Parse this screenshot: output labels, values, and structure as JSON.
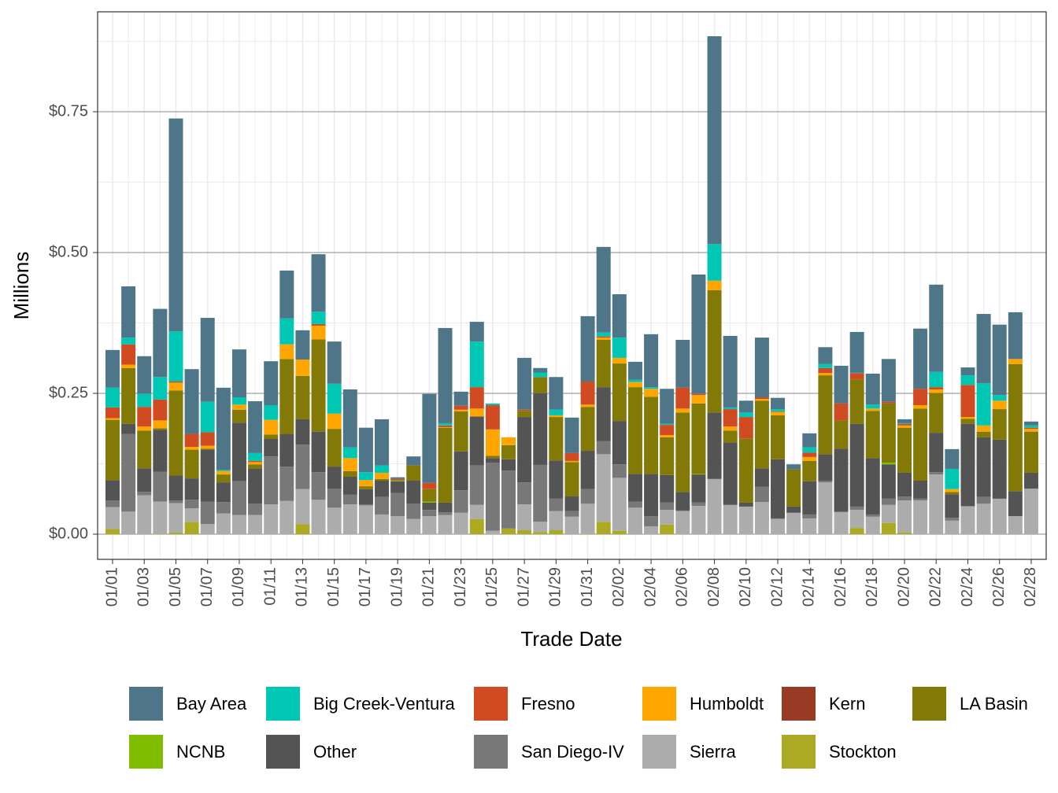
{
  "chart_data": {
    "type": "bar",
    "stacked": true,
    "xlabel": "Trade Date",
    "ylabel": "Millions",
    "ylim": [
      0,
      0.92
    ],
    "y_ticks": [
      0,
      0.25,
      0.5,
      0.75
    ],
    "y_tick_labels": [
      "$0.00",
      "$0.25",
      "$0.50",
      "$0.75"
    ],
    "grid": true,
    "legend_position": "bottom",
    "categories": [
      "01/01",
      "01/02",
      "01/03",
      "01/04",
      "01/05",
      "01/06",
      "01/07",
      "01/08",
      "01/09",
      "01/10",
      "01/11",
      "01/12",
      "01/13",
      "01/14",
      "01/15",
      "01/16",
      "01/17",
      "01/18",
      "01/19",
      "01/20",
      "01/21",
      "01/22",
      "01/23",
      "01/24",
      "01/25",
      "01/26",
      "01/27",
      "01/28",
      "01/29",
      "01/30",
      "01/31",
      "02/01",
      "02/02",
      "02/03",
      "02/04",
      "02/05",
      "02/06",
      "02/07",
      "02/08",
      "02/09",
      "02/10",
      "02/11",
      "02/12",
      "02/13",
      "02/14",
      "02/15",
      "02/16",
      "02/17",
      "02/18",
      "02/19",
      "02/20",
      "02/21",
      "02/22",
      "02/23",
      "02/24",
      "02/25",
      "02/26",
      "02/27",
      "02/28"
    ],
    "x_tick_labels": [
      "01/01",
      "01/03",
      "01/05",
      "01/07",
      "01/09",
      "01/11",
      "01/13",
      "01/15",
      "01/17",
      "01/19",
      "01/21",
      "01/23",
      "01/25",
      "01/27",
      "01/29",
      "01/31",
      "02/02",
      "02/04",
      "02/06",
      "02/08",
      "02/10",
      "02/12",
      "02/14",
      "02/16",
      "02/18",
      "02/20",
      "02/22",
      "02/24",
      "02/26",
      "02/28"
    ],
    "series": [
      {
        "name": "Bay Area",
        "color": "#4f7589",
        "values": [
          0.067,
          0.091,
          0.067,
          0.121,
          0.378,
          0.115,
          0.149,
          0.146,
          0.085,
          0.092,
          0.078,
          0.085,
          0.052,
          0.102,
          0.075,
          0.103,
          0.079,
          0.082,
          0.003,
          0.016,
          0.158,
          0.169,
          0.025,
          0.035,
          0,
          0,
          0.092,
          0.008,
          0.058,
          0.063,
          0.116,
          0.152,
          0.077,
          0.032,
          0.094,
          0.062,
          0.085,
          0.212,
          0.369,
          0.127,
          0.021,
          0.106,
          0.02,
          0.009,
          0.025,
          0.03,
          0.067,
          0.072,
          0.055,
          0.076,
          0.007,
          0.107,
          0.155,
          0.035,
          0.014,
          0.123,
          0.125,
          0.083,
          0.007
        ]
      },
      {
        "name": "Big Creek-Ventura",
        "color": "#00c7b3",
        "values": [
          0.035,
          0.012,
          0.023,
          0.04,
          0.089,
          0,
          0.054,
          0.002,
          0.013,
          0.014,
          0.026,
          0.046,
          0,
          0.022,
          0.053,
          0.019,
          0.014,
          0.013,
          0,
          0,
          0,
          0.004,
          0,
          0.081,
          0.003,
          0,
          0,
          0.008,
          0.01,
          0,
          0,
          0.007,
          0.036,
          0.004,
          0.003,
          0.002,
          0,
          0,
          0.065,
          0.003,
          0.008,
          0,
          0.004,
          0,
          0.009,
          0.007,
          0,
          0.001,
          0.007,
          0,
          0.001,
          0,
          0.027,
          0.036,
          0.017,
          0.075,
          0.01,
          0,
          0.004
        ]
      },
      {
        "name": "Fresno",
        "color": "#d04a22",
        "values": [
          0.019,
          0.036,
          0.035,
          0.037,
          0.002,
          0.023,
          0.024,
          0,
          0,
          0.002,
          0,
          0,
          0,
          0.003,
          0,
          0,
          0,
          0,
          0.002,
          0,
          0.011,
          0.003,
          0.007,
          0.038,
          0.043,
          0,
          0.002,
          0,
          0,
          0.014,
          0.041,
          0.002,
          0,
          0,
          0,
          0.018,
          0.037,
          0.002,
          0,
          0.031,
          0.038,
          0.003,
          0.001,
          0,
          0.008,
          0.009,
          0.03,
          0.011,
          0,
          0.003,
          0.003,
          0.029,
          0.004,
          0,
          0.057,
          0,
          0,
          0,
          0.002
        ]
      },
      {
        "name": "Humboldt",
        "color": "#ffa500",
        "values": [
          0.003,
          0.006,
          0.007,
          0.014,
          0.014,
          0.005,
          0.005,
          0.006,
          0.009,
          0.004,
          0.026,
          0.026,
          0.029,
          0.024,
          0.027,
          0.023,
          0.011,
          0.011,
          0,
          0,
          0,
          0.001,
          0.003,
          0.014,
          0.047,
          0.014,
          0,
          0,
          0.003,
          0.002,
          0.004,
          0.004,
          0.01,
          0.009,
          0.014,
          0.004,
          0.007,
          0.015,
          0.017,
          0.007,
          0,
          0.003,
          0.006,
          0,
          0.007,
          0.004,
          0,
          0,
          0.004,
          0,
          0.004,
          0.006,
          0.006,
          0.005,
          0.003,
          0.011,
          0.015,
          0.009,
          0.005
        ]
      },
      {
        "name": "Kern",
        "color": "#983a24",
        "values": [
          0,
          0,
          0,
          0,
          0,
          0,
          0,
          0,
          0,
          0,
          0,
          0,
          0,
          0,
          0,
          0,
          0,
          0,
          0,
          0,
          0,
          0,
          0,
          0,
          0,
          0,
          0,
          0,
          0,
          0,
          0,
          0,
          0,
          0,
          0,
          0,
          0,
          0,
          0,
          0,
          0,
          0,
          0,
          0,
          0,
          0,
          0,
          0,
          0,
          0,
          0,
          0,
          0,
          0,
          0,
          0,
          0,
          0,
          0
        ]
      },
      {
        "name": "LA Basin",
        "color": "#827906",
        "values": [
          0.107,
          0.099,
          0.067,
          0.003,
          0.151,
          0.051,
          0.002,
          0.014,
          0.023,
          0.007,
          0.008,
          0.133,
          0.077,
          0.164,
          0.067,
          0.01,
          0.005,
          0.003,
          0.001,
          0.027,
          0.022,
          0.133,
          0.071,
          0,
          0.004,
          0.025,
          0.011,
          0.028,
          0.077,
          0.061,
          0.078,
          0.084,
          0.102,
          0.154,
          0.137,
          0.067,
          0.141,
          0.125,
          0.217,
          0.021,
          0.114,
          0.12,
          0.078,
          0.066,
          0.036,
          0.14,
          0.05,
          0.079,
          0.084,
          0.105,
          0.08,
          0.128,
          0.071,
          0.004,
          0.009,
          0.01,
          0.054,
          0.226,
          0.073
        ]
      },
      {
        "name": "NCNB",
        "color": "#80bc00",
        "values": [
          0,
          0,
          0,
          0,
          0,
          0,
          0,
          0,
          0,
          0,
          0,
          0,
          0,
          0,
          0,
          0,
          0,
          0,
          0.001,
          0,
          0.002,
          0,
          0,
          0,
          0,
          0,
          0,
          0,
          0,
          0,
          0,
          0,
          0,
          0,
          0,
          0,
          0,
          0.001,
          0,
          0,
          0,
          0,
          0,
          0,
          0,
          0,
          0,
          0,
          0,
          0.003,
          0,
          0,
          0,
          0,
          0,
          0,
          0,
          0,
          0
        ]
      },
      {
        "name": "Other",
        "color": "#545454",
        "values": [
          0.036,
          0.018,
          0.042,
          0.074,
          0.044,
          0.038,
          0.092,
          0.035,
          0.104,
          0.063,
          0.031,
          0.058,
          0.045,
          0.072,
          0.039,
          0.032,
          0.027,
          0.029,
          0.021,
          0.041,
          0.013,
          0.017,
          0.069,
          0.087,
          0.008,
          0.02,
          0.116,
          0.128,
          0.068,
          0.026,
          0.068,
          0.096,
          0.077,
          0.049,
          0.075,
          0.049,
          0.033,
          0.05,
          0.118,
          0.111,
          0.007,
          0.033,
          0.105,
          0.011,
          0.059,
          0.047,
          0.112,
          0.147,
          0.1,
          0.061,
          0.042,
          0.032,
          0.07,
          0.042,
          0.146,
          0.106,
          0.105,
          0.044,
          0.028
        ]
      },
      {
        "name": "San Diego-IV",
        "color": "#787878",
        "values": [
          0.012,
          0.138,
          0.006,
          0.053,
          0.005,
          0.015,
          0.04,
          0.02,
          0.06,
          0.02,
          0.085,
          0.061,
          0.079,
          0.049,
          0.034,
          0.017,
          0.002,
          0.031,
          0.041,
          0.027,
          0.011,
          0.005,
          0.04,
          0.07,
          0.121,
          0.103,
          0.039,
          0.101,
          0.022,
          0.01,
          0.026,
          0.023,
          0.024,
          0.011,
          0.018,
          0.013,
          0.001,
          0.006,
          0,
          0,
          0,
          0.027,
          0.001,
          0,
          0.007,
          0.003,
          0.001,
          0.006,
          0.004,
          0.011,
          0.007,
          0.003,
          0.004,
          0.005,
          0.001,
          0.012,
          0,
          0,
          0
        ]
      },
      {
        "name": "Sierra",
        "color": "#acacac",
        "values": [
          0.039,
          0.04,
          0.069,
          0.057,
          0.052,
          0.024,
          0.018,
          0.037,
          0.034,
          0.034,
          0.053,
          0.059,
          0.062,
          0.061,
          0.047,
          0.053,
          0.051,
          0.035,
          0.032,
          0.027,
          0.032,
          0.034,
          0.038,
          0.025,
          0.006,
          0,
          0.046,
          0.018,
          0.034,
          0.031,
          0.053,
          0.12,
          0.094,
          0.047,
          0.014,
          0.026,
          0.041,
          0.05,
          0.098,
          0.052,
          0.049,
          0.057,
          0.027,
          0.038,
          0.028,
          0.092,
          0.039,
          0.032,
          0.031,
          0.032,
          0.057,
          0.06,
          0.106,
          0.024,
          0.049,
          0.054,
          0.063,
          0.032,
          0.081
        ]
      },
      {
        "name": "Stockton",
        "color": "#abaa22",
        "values": [
          0.009,
          0,
          0,
          0.001,
          0.003,
          0.022,
          0,
          0,
          0,
          0,
          0,
          0,
          0.018,
          0,
          0,
          0,
          0,
          0,
          0,
          0,
          0,
          0,
          0,
          0.027,
          0,
          0.01,
          0.007,
          0.004,
          0.007,
          0,
          0.001,
          0.022,
          0.006,
          0,
          0,
          0.017,
          0,
          0,
          0,
          0,
          0,
          0,
          0,
          0,
          0,
          0,
          0,
          0.011,
          0,
          0.02,
          0.003,
          0,
          0,
          0,
          0,
          0,
          0,
          0,
          0
        ]
      }
    ]
  }
}
